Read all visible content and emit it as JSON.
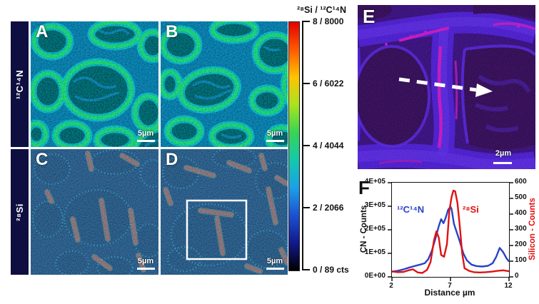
{
  "figure": {
    "rows": [
      {
        "label": "¹²C¹⁴N"
      },
      {
        "label": "²⁸Si"
      }
    ],
    "panels": [
      {
        "letter": "A",
        "scalebar": "5µm"
      },
      {
        "letter": "B",
        "scalebar": "5µm"
      },
      {
        "letter": "C",
        "scalebar": "5µm"
      },
      {
        "letter": "D",
        "scalebar": "5µm"
      },
      {
        "letter": "E",
        "scalebar": "2µm"
      }
    ],
    "colorbar": {
      "title": "²⁸Si / ¹²C¹⁴N",
      "ticks": [
        "8 / 8000",
        "6 / 6022",
        "4 / 4044",
        "2 / 2066",
        "0 / 89 cts"
      ],
      "gradient": [
        "#e30000",
        "#ff5a00",
        "#ffc400",
        "#a8e41e",
        "#38d455",
        "#12c9ae",
        "#1ba0e8",
        "#1b52d2",
        "#12188e",
        "#000000"
      ]
    }
  },
  "chart_data": {
    "type": "line",
    "panel_letter": "F",
    "title": "",
    "xlabel": "Distance µm",
    "ylabel_left": "CN - Counts",
    "ylabel_right": "Silicon - Counts",
    "xlim": [
      2,
      12
    ],
    "xticks": [
      2,
      7,
      12
    ],
    "ylim_left": [
      0,
      400000
    ],
    "yticks_left": [
      "0E+00",
      "1E+05",
      "2E+05",
      "3E+05",
      "4E+05"
    ],
    "ylim_right": [
      0,
      600
    ],
    "yticks_right": [
      "0",
      "100",
      "200",
      "300",
      "400",
      "500",
      "600"
    ],
    "grid": false,
    "legend_position": "inside",
    "series": [
      {
        "name": "¹²C¹⁴N",
        "axis": "left",
        "color": "#2743c6",
        "x": [
          2.0,
          2.5,
          3.0,
          3.5,
          4.0,
          4.4,
          4.8,
          5.1,
          5.4,
          5.7,
          6.0,
          6.2,
          6.4,
          6.6,
          6.8,
          7.0,
          7.1,
          7.3,
          7.5,
          7.8,
          8.1,
          8.4,
          8.8,
          9.2,
          9.7,
          10.2,
          10.6,
          10.9,
          11.2,
          11.5,
          11.8,
          12.0
        ],
        "y": [
          22000,
          26000,
          32000,
          40000,
          47000,
          52000,
          58000,
          75000,
          110000,
          160000,
          215000,
          245000,
          228000,
          252000,
          285000,
          298000,
          288000,
          225000,
          195000,
          150000,
          100000,
          70000,
          52000,
          46000,
          44000,
          47000,
          58000,
          85000,
          123000,
          105000,
          78000,
          65000
        ]
      },
      {
        "name": "²⁸Si",
        "axis": "right",
        "color": "#e01212",
        "x": [
          2.0,
          2.5,
          3.0,
          3.4,
          3.8,
          4.2,
          4.6,
          5.0,
          5.3,
          5.6,
          5.8,
          6.0,
          6.2,
          6.45,
          6.7,
          6.9,
          7.1,
          7.25,
          7.4,
          7.6,
          7.8,
          8.0,
          8.2,
          8.6,
          9.0,
          9.5,
          10.0,
          10.5,
          11.0,
          11.5,
          12.0
        ],
        "y": [
          35,
          30,
          32,
          42,
          48,
          28,
          25,
          45,
          95,
          235,
          290,
          250,
          140,
          128,
          210,
          420,
          510,
          550,
          545,
          470,
          320,
          150,
          55,
          38,
          30,
          28,
          30,
          33,
          38,
          42,
          36
        ]
      }
    ]
  }
}
